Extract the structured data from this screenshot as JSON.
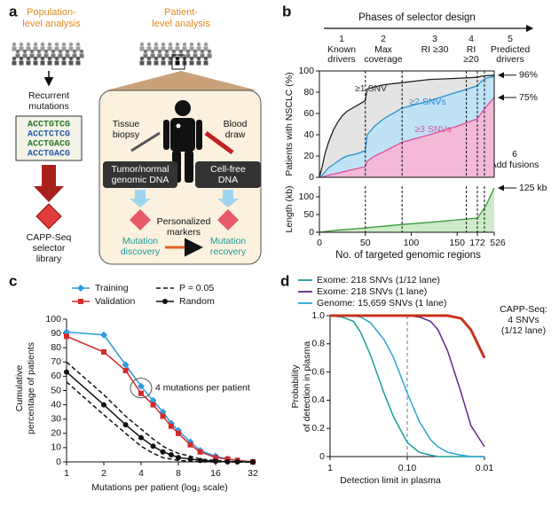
{
  "panel_a": {
    "label": "a",
    "population_title": [
      "Population-",
      "level analysis"
    ],
    "patient_title": [
      "Patient-",
      "level analysis"
    ],
    "recurrent": [
      "Recurrent",
      "mutations"
    ],
    "sequences": [
      "ACCTGTCG",
      "ACCTCTCG",
      "ACCTGACG",
      "ACCTGACG"
    ],
    "selector": [
      "CAPP-Seq",
      "selector",
      "library"
    ],
    "tissue": [
      "Tissue",
      "biopsy"
    ],
    "blood": [
      "Blood",
      "draw"
    ],
    "tumor_dna": [
      "Tumor/normal",
      "genomic DNA"
    ],
    "cfdna": [
      "Cell-free",
      "DNA"
    ],
    "discovery": [
      "Mutation",
      "discovery"
    ],
    "markers": [
      "Personalized",
      "markers"
    ],
    "recovery": [
      "Mutation",
      "recovery"
    ]
  },
  "chart_data": [
    {
      "type": "area",
      "label": "b",
      "header": "Phases of selector design",
      "phases": [
        {
          "number": "1",
          "name": [
            "Known",
            "drivers"
          ]
        },
        {
          "number": "2",
          "name": [
            "Max",
            "coverage"
          ]
        },
        {
          "number": "3",
          "name": [
            "RI ≥30"
          ]
        },
        {
          "number": "4",
          "name": [
            "RI",
            "≥20"
          ]
        },
        {
          "number": "5",
          "name": [
            "Predicted",
            "drivers"
          ]
        },
        {
          "number": "6",
          "name": [
            "Add fusions"
          ]
        }
      ],
      "phase_boundaries": [
        50,
        90,
        160,
        172,
        320
      ],
      "y_label": "Patients with NSCLC (%)",
      "ylim": [
        0,
        100
      ],
      "yticks": [
        0,
        20,
        40,
        60,
        80,
        100
      ],
      "x": [
        0,
        3,
        6,
        10,
        15,
        20,
        25,
        30,
        40,
        50,
        52,
        60,
        70,
        90,
        120,
        150,
        172,
        250,
        350,
        526
      ],
      "series": [
        {
          "name": "≥1 SNV",
          "color": "#222222",
          "fill": "#e4e4e4",
          "end_label": "96%",
          "values": [
            0,
            10,
            22,
            33,
            44,
            52,
            58,
            62,
            67,
            72,
            83,
            85,
            87,
            89,
            92,
            93,
            94,
            95,
            95.5,
            96
          ]
        },
        {
          "name": "≥2 SNVs",
          "color": "#2a8fd0",
          "fill": "#bfe2f5",
          "values": [
            0,
            2,
            5,
            9,
            12,
            15,
            18,
            20,
            22,
            25,
            40,
            48,
            55,
            65,
            72,
            80,
            86,
            90,
            93,
            95
          ]
        },
        {
          "name": "≥3 SNVs",
          "color": "#e0509a",
          "fill": "#f3b9d6",
          "end_label": "75%",
          "values": [
            0,
            0,
            1,
            2,
            3,
            4,
            5,
            6,
            8,
            10,
            15,
            20,
            24,
            33,
            40,
            48,
            55,
            60,
            66,
            75
          ]
        }
      ]
    },
    {
      "type": "area",
      "y_label": "Length (kb)",
      "x_label": "No. of targeted genomic regions",
      "xlim": [
        0,
        526
      ],
      "xticks": [
        0,
        50,
        100,
        150,
        172,
        526
      ],
      "ylim": [
        0,
        130
      ],
      "yticks": [
        0,
        50,
        100
      ],
      "x": [
        0,
        3,
        6,
        10,
        15,
        20,
        25,
        30,
        40,
        50,
        52,
        60,
        70,
        90,
        120,
        150,
        172,
        250,
        350,
        526
      ],
      "series": [
        {
          "color": "#3a9a3a",
          "fill": "#cdeac9",
          "end_label": "125 kb",
          "values": [
            0,
            1,
            2,
            3,
            5,
            6,
            7,
            8,
            10,
            12,
            13,
            15,
            17,
            22,
            28,
            35,
            40,
            55,
            75,
            125
          ]
        }
      ]
    },
    {
      "type": "line",
      "label": "c",
      "y_label": [
        "Cumulative",
        "percentage of patients"
      ],
      "x_label": "Mutations per patient (log₂ scale)",
      "log_x": 2,
      "xlim": [
        1,
        32
      ],
      "xticks": [
        1,
        2,
        4,
        8,
        16,
        32
      ],
      "ylim": [
        0,
        100
      ],
      "yticks": [
        0,
        10,
        20,
        30,
        40,
        50,
        60,
        70,
        80,
        90,
        100
      ],
      "annotation": "4 mutations per patient",
      "annotation_x": 4,
      "x": [
        1,
        2,
        3,
        4,
        5,
        6,
        7,
        8,
        10,
        12,
        16,
        20,
        24,
        32
      ],
      "series": [
        {
          "name": "Training",
          "color": "#2e9be0",
          "marker": "diamond",
          "values": [
            91,
            89,
            68,
            53,
            43,
            35,
            27,
            22,
            14,
            8,
            4,
            2,
            1,
            0
          ]
        },
        {
          "name": "Validation",
          "color": "#d42a2a",
          "marker": "square",
          "values": [
            88,
            77,
            64,
            48,
            40,
            32,
            25,
            20,
            12,
            7,
            3,
            2,
            1,
            0
          ]
        },
        {
          "name": "P = 0.05",
          "color": "#111111",
          "dashed": true,
          "values": [
            70,
            47,
            32,
            23,
            16,
            11,
            8,
            6,
            4,
            2,
            1,
            0.5,
            0,
            0
          ],
          "lower": [
            56,
            33,
            20,
            11,
            6,
            3,
            2,
            1,
            0.5,
            0,
            0,
            0,
            0,
            0
          ]
        },
        {
          "name": "Random",
          "color": "#111111",
          "marker": "circle",
          "values": [
            63,
            40,
            26,
            17,
            11,
            7,
            5,
            3,
            2,
            1,
            0.5,
            0,
            0,
            0
          ]
        }
      ]
    },
    {
      "type": "line",
      "label": "d",
      "y_label": [
        "Probability",
        "of detection in plasma"
      ],
      "x_label": "Detection limit in plasma",
      "log_x": 10,
      "xlim": [
        1,
        0.01
      ],
      "xticks": [
        1,
        {
          "value": 0.1,
          "label": "0.10"
        },
        0.01
      ],
      "ylim": [
        0,
        1
      ],
      "yticks": [
        0,
        0.2,
        0.4,
        0.6,
        0.8,
        {
          "value": 1,
          "label": "1.0"
        }
      ],
      "reference_x": 0.1,
      "annotation": [
        "CAPP-Seq:",
        "4 SNVs",
        "(1/12 lane)"
      ],
      "x": [
        1,
        0.7,
        0.5,
        0.4,
        0.3,
        0.2,
        0.15,
        0.1,
        0.07,
        0.05,
        0.04,
        0.03,
        0.02,
        0.015,
        0.01
      ],
      "series": [
        {
          "name": "Exome: 218 SNVs (1/12 lane)",
          "color": "#1b9c9c",
          "values": [
            1,
            0.99,
            0.96,
            0.88,
            0.72,
            0.45,
            0.28,
            0.1,
            0.03,
            0.01,
            0,
            0,
            0,
            0,
            0
          ]
        },
        {
          "name": "Exome: 218 SNVs (1 lane)",
          "color": "#5a2a8a",
          "values": [
            1,
            1,
            1,
            1,
            1,
            1,
            1,
            1,
            0.99,
            0.96,
            0.9,
            0.75,
            0.45,
            0.22,
            0.07
          ]
        },
        {
          "name": "Genome: 15,659 SNVs (1 lane)",
          "color": "#2aa6d8",
          "values": [
            1,
            1,
            1,
            0.99,
            0.95,
            0.83,
            0.7,
            0.45,
            0.25,
            0.12,
            0.07,
            0.03,
            0.01,
            0,
            0
          ]
        },
        {
          "color": "#c8321e",
          "thick": true,
          "values": [
            1,
            1,
            1,
            1,
            1,
            1,
            1,
            1,
            1,
            1,
            1,
            1,
            0.98,
            0.9,
            0.7
          ]
        }
      ]
    }
  ]
}
